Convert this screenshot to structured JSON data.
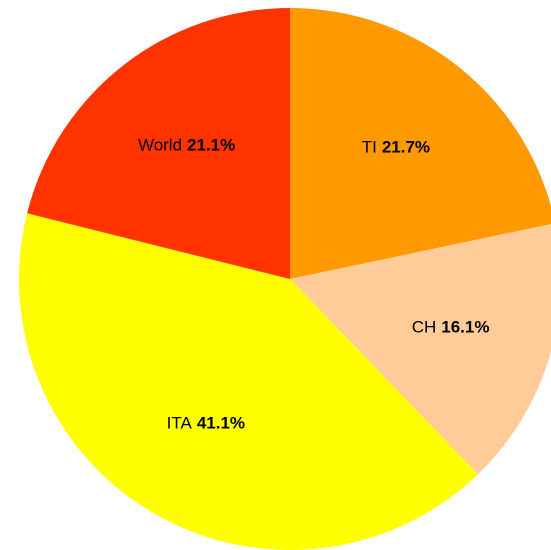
{
  "chart_data": {
    "type": "pie",
    "categories": [
      "TI",
      "CH",
      "ITA",
      "World"
    ],
    "values": [
      21.7,
      16.1,
      41.1,
      21.1
    ],
    "value_labels": [
      "21.7%",
      "16.1%",
      "41.1%",
      "21.1%"
    ],
    "colors": [
      "#ff9900",
      "#ffcc99",
      "#ffff00",
      "#ff3300"
    ]
  }
}
